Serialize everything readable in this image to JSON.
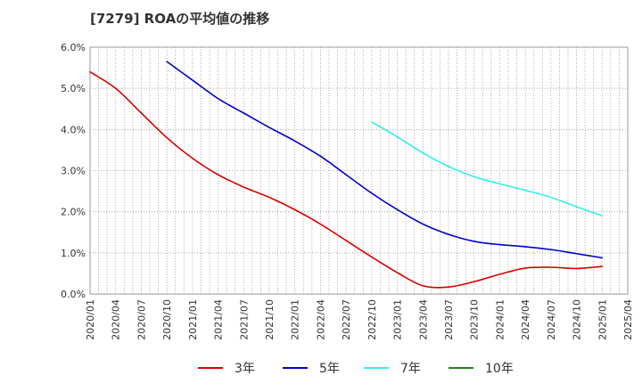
{
  "chart_data": {
    "type": "line",
    "title": "[7279]  ROAの平均値の推移",
    "xlabel": "",
    "ylabel": "",
    "x_ticks": [
      "2020/01",
      "2020/04",
      "2020/07",
      "2020/10",
      "2021/01",
      "2021/04",
      "2021/07",
      "2021/10",
      "2022/01",
      "2022/04",
      "2022/07",
      "2022/10",
      "2023/01",
      "2023/04",
      "2023/07",
      "2023/10",
      "2024/01",
      "2024/04",
      "2024/07",
      "2024/10",
      "2025/01",
      "2025/04"
    ],
    "y_ticks": [
      "0.0%",
      "1.0%",
      "2.0%",
      "3.0%",
      "4.0%",
      "5.0%",
      "6.0%"
    ],
    "ylim": [
      0,
      6
    ],
    "grid": true,
    "legend_position": "bottom",
    "series": [
      {
        "name": "3年",
        "color": "#dd0000",
        "points": [
          [
            "2020/01",
            5.4
          ],
          [
            "2020/04",
            5.0
          ],
          [
            "2020/07",
            4.4
          ],
          [
            "2020/10",
            3.8
          ],
          [
            "2021/01",
            3.3
          ],
          [
            "2021/04",
            2.9
          ],
          [
            "2021/07",
            2.6
          ],
          [
            "2021/10",
            2.35
          ],
          [
            "2022/01",
            2.05
          ],
          [
            "2022/04",
            1.7
          ],
          [
            "2022/07",
            1.3
          ],
          [
            "2022/10",
            0.9
          ],
          [
            "2023/01",
            0.52
          ],
          [
            "2023/04",
            0.2
          ],
          [
            "2023/07",
            0.17
          ],
          [
            "2023/10",
            0.3
          ],
          [
            "2024/01",
            0.48
          ],
          [
            "2024/04",
            0.63
          ],
          [
            "2024/07",
            0.65
          ],
          [
            "2024/10",
            0.62
          ],
          [
            "2025/01",
            0.67
          ]
        ]
      },
      {
        "name": "5年",
        "color": "#0000cc",
        "points": [
          [
            "2020/10",
            5.65
          ],
          [
            "2021/01",
            5.2
          ],
          [
            "2021/04",
            4.75
          ],
          [
            "2021/07",
            4.4
          ],
          [
            "2021/10",
            4.05
          ],
          [
            "2022/01",
            3.72
          ],
          [
            "2022/04",
            3.35
          ],
          [
            "2022/07",
            2.9
          ],
          [
            "2022/10",
            2.45
          ],
          [
            "2023/01",
            2.05
          ],
          [
            "2023/04",
            1.7
          ],
          [
            "2023/07",
            1.45
          ],
          [
            "2023/10",
            1.28
          ],
          [
            "2024/01",
            1.2
          ],
          [
            "2024/04",
            1.15
          ],
          [
            "2024/07",
            1.08
          ],
          [
            "2024/10",
            0.98
          ],
          [
            "2025/01",
            0.88
          ]
        ]
      },
      {
        "name": "7年",
        "color": "#33eeee",
        "points": [
          [
            "2022/10",
            4.18
          ],
          [
            "2023/01",
            3.82
          ],
          [
            "2023/04",
            3.43
          ],
          [
            "2023/07",
            3.1
          ],
          [
            "2023/10",
            2.85
          ],
          [
            "2024/01",
            2.68
          ],
          [
            "2024/04",
            2.52
          ],
          [
            "2024/07",
            2.35
          ],
          [
            "2024/10",
            2.12
          ],
          [
            "2025/01",
            1.9
          ]
        ]
      },
      {
        "name": "10年",
        "color": "#228822",
        "points": []
      }
    ]
  }
}
